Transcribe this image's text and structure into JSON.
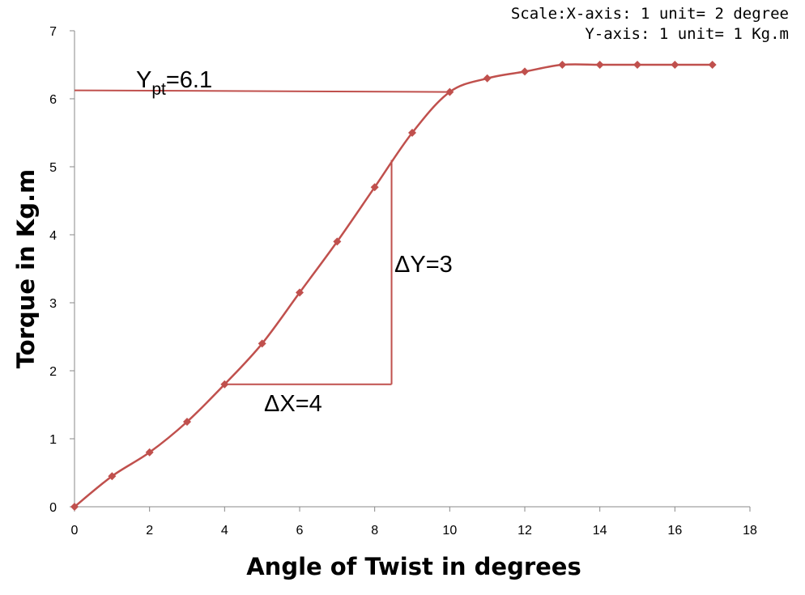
{
  "scale_note": {
    "line1": "Scale:X-axis: 1 unit= 2 degree",
    "line2": "Y-axis: 1 unit= 1 Kg.m"
  },
  "chart_data": {
    "type": "line",
    "xlabel": "Angle of Twist in degrees",
    "ylabel": "Torque in Kg.m",
    "xlim": [
      0,
      18
    ],
    "ylim": [
      0,
      7
    ],
    "xticks": [
      0,
      2,
      4,
      6,
      8,
      10,
      12,
      14,
      16,
      18
    ],
    "yticks": [
      0,
      1,
      2,
      3,
      4,
      5,
      6,
      7
    ],
    "grid": false,
    "series": [
      {
        "color": "#c0504d",
        "marker": "diamond",
        "smooth": true,
        "x": [
          0,
          1,
          2,
          3,
          4,
          5,
          6,
          7,
          8,
          9,
          10,
          11,
          12,
          13,
          14,
          15,
          16,
          17
        ],
        "y": [
          0,
          0.45,
          0.8,
          1.25,
          1.8,
          2.4,
          3.15,
          3.9,
          4.7,
          5.5,
          6.1,
          6.3,
          6.4,
          6.5,
          6.5,
          6.5,
          6.5,
          6.5
        ]
      }
    ],
    "annotations": {
      "ypt_main": "Y",
      "ypt_sub": "pt",
      "ypt_value": "=6.1",
      "dx_label": "ΔX=4",
      "dy_label": "ΔY=3",
      "yield_line_y": 6.1,
      "yield_line_x_end": 10,
      "triangle": {
        "x1": 4,
        "x2": 8.45,
        "y1": 1.8,
        "y2": 5.1
      }
    }
  }
}
